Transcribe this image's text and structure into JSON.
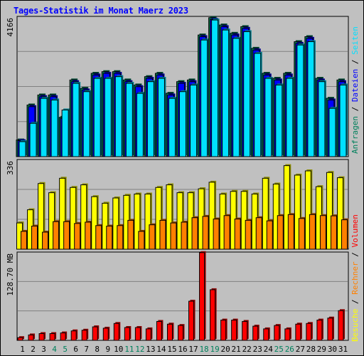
{
  "title": "Tages-Statistik im Monat Maerz 2023",
  "chart_data": [
    {
      "type": "bar",
      "panel": "requests-files-pages",
      "max_label": "4166",
      "ylim": [
        0,
        4166
      ],
      "series": [
        {
          "name": "Anfragen",
          "color": "#00805c",
          "values": [
            500,
            1550,
            1850,
            1850,
            1180,
            2300,
            2050,
            2500,
            2550,
            2550,
            2300,
            2150,
            2400,
            2500,
            1900,
            2250,
            2300,
            3650,
            4170,
            3950,
            3700,
            3900,
            3250,
            2500,
            2350,
            2500,
            3450,
            3600,
            2350,
            1750,
            2300
          ]
        },
        {
          "name": "Dateien",
          "color": "#0000ff",
          "values": [
            480,
            1500,
            1800,
            1800,
            1150,
            2250,
            2000,
            2450,
            2500,
            2500,
            2250,
            2100,
            2350,
            2450,
            1850,
            2200,
            2250,
            3600,
            4120,
            3900,
            3650,
            3850,
            3200,
            2450,
            2300,
            2450,
            3400,
            3550,
            2300,
            1700,
            2250
          ]
        },
        {
          "name": "Seiten",
          "color": "#00e0ff",
          "values": [
            450,
            1000,
            1750,
            1700,
            1400,
            2200,
            1950,
            2350,
            2350,
            2400,
            2200,
            1900,
            2250,
            2350,
            1750,
            1950,
            2150,
            3500,
            4100,
            3800,
            3550,
            3750,
            3100,
            2350,
            2150,
            2350,
            3350,
            3450,
            2250,
            1450,
            2150
          ]
        }
      ]
    },
    {
      "type": "bar",
      "panel": "visits-sites",
      "max_label": "336",
      "ylim": [
        0,
        336
      ],
      "series": [
        {
          "name": "Besuche",
          "color": "#ffff00",
          "values": [
            100,
            150,
            250,
            215,
            270,
            235,
            245,
            200,
            175,
            195,
            205,
            210,
            210,
            235,
            245,
            215,
            215,
            230,
            255,
            210,
            220,
            220,
            210,
            270,
            248,
            318,
            282,
            298,
            238,
            292,
            272
          ]
        },
        {
          "name": "Rechner",
          "color": "#ff8000",
          "values": [
            68,
            88,
            65,
            105,
            105,
            98,
            103,
            90,
            88,
            90,
            110,
            68,
            93,
            110,
            100,
            103,
            120,
            125,
            115,
            128,
            115,
            110,
            120,
            108,
            128,
            132,
            117,
            132,
            128,
            127,
            112
          ]
        }
      ]
    },
    {
      "type": "bar",
      "panel": "volume",
      "max_label": "128.70 MB",
      "ylim": [
        0,
        128.7
      ],
      "series": [
        {
          "name": "Volumen",
          "color": "#ff0000",
          "values": [
            4,
            8,
            10,
            10,
            11,
            14,
            15,
            20,
            18,
            25,
            19,
            19,
            17,
            28,
            24,
            22,
            58,
            130,
            75,
            30,
            30,
            28,
            21,
            17,
            22,
            17,
            24,
            25,
            30,
            33,
            44
          ]
        }
      ]
    }
  ],
  "x_labels": [
    "1",
    "2",
    "3",
    "4",
    "5",
    "6",
    "7",
    "8",
    "9",
    "10",
    "11",
    "12",
    "13",
    "14",
    "15",
    "16",
    "17",
    "18",
    "19",
    "20",
    "21",
    "22",
    "23",
    "24",
    "25",
    "26",
    "27",
    "28",
    "29",
    "30",
    "31"
  ],
  "weekend_days": [
    4,
    5,
    11,
    12,
    18,
    19,
    25,
    26
  ],
  "legend_right_top": [
    "Anfragen",
    "/",
    "Dateien",
    "/",
    "Seiten"
  ],
  "legend_right_mid": [
    "Besuche",
    "/",
    "Rechner",
    "/",
    "Volumen"
  ],
  "colors": {
    "background": "#c0c0c0",
    "plot_bg": "#c0c0c0",
    "weekday_label": "#000000",
    "weekend_label": "#00805c",
    "slash": "#000000",
    "grid": "#000000"
  }
}
